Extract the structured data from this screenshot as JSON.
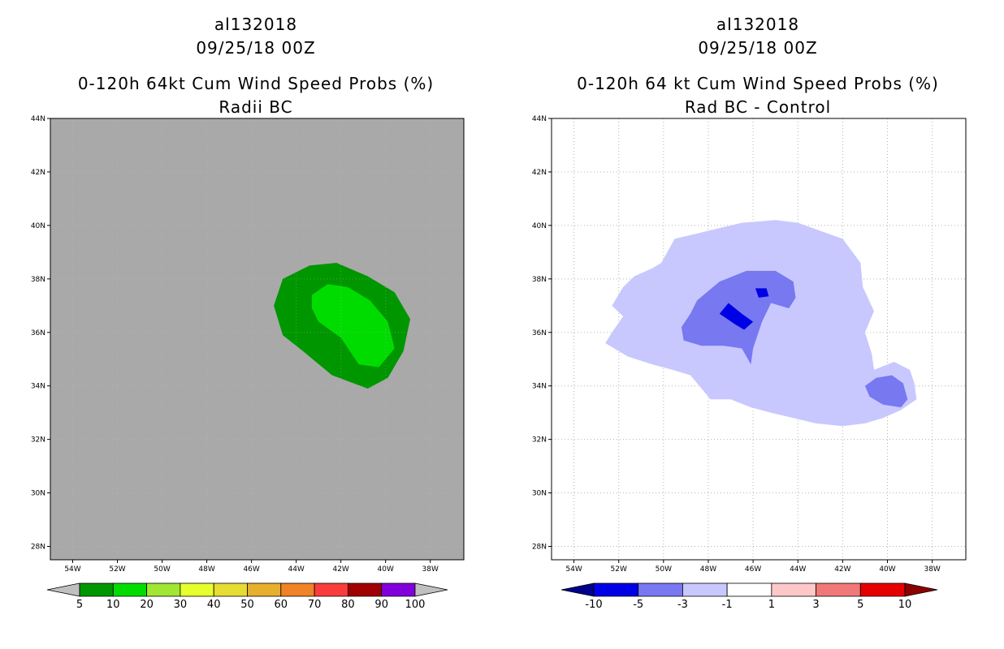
{
  "chart_data": [
    {
      "type": "contour-map",
      "storm_id": "al132018",
      "datetime": "09/25/18 00Z",
      "title": "0-120h 64kt Cum Wind Speed Probs (%)",
      "subtitle": "Radii BC",
      "lat_ticks": [
        "44N",
        "42N",
        "40N",
        "38N",
        "36N",
        "34N",
        "32N",
        "30N",
        "28N"
      ],
      "lon_ticks": [
        "54W",
        "52W",
        "50W",
        "48W",
        "46W",
        "44W",
        "42W",
        "40W",
        "38W"
      ],
      "lon_range": [
        55,
        36.5
      ],
      "lat_range": [
        27.5,
        44
      ],
      "grid": false,
      "background": "#a9a9a9",
      "contours": [
        {
          "level": "5-10",
          "color": "#009600",
          "points": [
            [
              45.0,
              37.0
            ],
            [
              44.6,
              38.0
            ],
            [
              43.4,
              38.5
            ],
            [
              42.2,
              38.6
            ],
            [
              40.8,
              38.1
            ],
            [
              39.6,
              37.5
            ],
            [
              38.9,
              36.5
            ],
            [
              39.2,
              35.3
            ],
            [
              39.9,
              34.3
            ],
            [
              40.8,
              33.9
            ],
            [
              42.4,
              34.4
            ],
            [
              43.7,
              35.3
            ],
            [
              44.6,
              35.9
            ]
          ]
        },
        {
          "level": "10-20",
          "color": "#00dc00",
          "points": [
            [
              43.3,
              37.4
            ],
            [
              42.6,
              37.8
            ],
            [
              41.7,
              37.7
            ],
            [
              40.7,
              37.2
            ],
            [
              39.9,
              36.4
            ],
            [
              39.6,
              35.4
            ],
            [
              40.3,
              34.7
            ],
            [
              41.2,
              34.8
            ],
            [
              42.0,
              35.8
            ],
            [
              43.0,
              36.4
            ],
            [
              43.3,
              36.9
            ]
          ]
        }
      ],
      "colorbar": {
        "labels": [
          "5",
          "10",
          "20",
          "30",
          "40",
          "50",
          "60",
          "70",
          "80",
          "90",
          "100"
        ],
        "colors": [
          "#009600",
          "#00dc00",
          "#a0e632",
          "#e6ff2d",
          "#e6dc32",
          "#e6af2d",
          "#f08228",
          "#fa3c3c",
          "#a00000",
          "#8200dc"
        ],
        "left_arrow_color": "#c0c0c0",
        "right_arrow_color": "#c0c0c0"
      }
    },
    {
      "type": "contour-map",
      "storm_id": "al132018",
      "datetime": "09/25/18 00Z",
      "title": "0-120h 64 kt Cum Wind Speed Probs (%)",
      "subtitle": "Rad BC - Control",
      "lat_ticks": [
        "44N",
        "42N",
        "40N",
        "38N",
        "36N",
        "34N",
        "32N",
        "30N",
        "28N"
      ],
      "lon_ticks": [
        "54W",
        "52W",
        "50W",
        "48W",
        "46W",
        "44W",
        "42W",
        "40W",
        "38W"
      ],
      "lon_range": [
        55,
        36.5
      ],
      "lat_range": [
        27.5,
        44
      ],
      "grid": true,
      "background": "#ffffff",
      "contours": [
        {
          "level": "-3 to -1",
          "color": "#c8c8ff",
          "points": [
            [
              49.5,
              39.5
            ],
            [
              48.0,
              39.8
            ],
            [
              46.5,
              40.1
            ],
            [
              45.0,
              40.2
            ],
            [
              44.0,
              40.1
            ],
            [
              43.0,
              39.8
            ],
            [
              42.0,
              39.5
            ],
            [
              41.2,
              38.6
            ],
            [
              41.1,
              37.7
            ],
            [
              40.6,
              36.8
            ],
            [
              41.0,
              36.0
            ],
            [
              40.7,
              35.2
            ],
            [
              40.6,
              34.6
            ],
            [
              39.7,
              34.9
            ],
            [
              39.0,
              34.6
            ],
            [
              38.8,
              34.1
            ],
            [
              38.7,
              33.5
            ],
            [
              39.4,
              33.1
            ],
            [
              40.2,
              32.8
            ],
            [
              41.0,
              32.6
            ],
            [
              42.0,
              32.5
            ],
            [
              43.2,
              32.6
            ],
            [
              44.2,
              32.8
            ],
            [
              45.2,
              33.0
            ],
            [
              46.1,
              33.2
            ],
            [
              47.0,
              33.5
            ],
            [
              47.9,
              33.5
            ],
            [
              48.3,
              33.9
            ],
            [
              48.8,
              34.4
            ],
            [
              49.6,
              34.6
            ],
            [
              50.5,
              34.8
            ],
            [
              51.6,
              35.1
            ],
            [
              52.6,
              35.6
            ],
            [
              52.3,
              36.0
            ],
            [
              51.8,
              36.6
            ],
            [
              52.3,
              37.0
            ],
            [
              51.8,
              37.7
            ],
            [
              51.3,
              38.1
            ],
            [
              50.5,
              38.4
            ],
            [
              50.1,
              38.6
            ]
          ]
        },
        {
          "level": "-5 to -3",
          "color": "#7878f0",
          "points": [
            [
              48.5,
              37.2
            ],
            [
              47.5,
              37.9
            ],
            [
              46.3,
              38.3
            ],
            [
              45.0,
              38.3
            ],
            [
              44.2,
              37.9
            ],
            [
              44.1,
              37.3
            ],
            [
              44.4,
              36.9
            ],
            [
              45.2,
              37.1
            ],
            [
              45.6,
              36.4
            ],
            [
              46.0,
              35.4
            ],
            [
              46.1,
              34.8
            ],
            [
              46.5,
              35.4
            ],
            [
              47.3,
              35.5
            ],
            [
              48.3,
              35.5
            ],
            [
              49.1,
              35.7
            ],
            [
              49.2,
              36.2
            ],
            [
              48.8,
              36.7
            ]
          ]
        },
        {
          "level": "-5 to -3",
          "color": "#7878f0",
          "points": [
            [
              41.0,
              34.0
            ],
            [
              40.8,
              33.6
            ],
            [
              40.2,
              33.3
            ],
            [
              39.4,
              33.2
            ],
            [
              39.1,
              33.5
            ],
            [
              39.3,
              34.1
            ],
            [
              39.8,
              34.4
            ],
            [
              40.5,
              34.3
            ]
          ]
        },
        {
          "level": "-10 to -5",
          "color": "#0000e6",
          "points": [
            [
              47.1,
              37.1
            ],
            [
              46.5,
              36.7
            ],
            [
              46.0,
              36.4
            ],
            [
              46.4,
              36.1
            ],
            [
              46.8,
              36.3
            ],
            [
              47.5,
              36.7
            ]
          ]
        },
        {
          "level": "-10 to -5",
          "color": "#0000e6",
          "points": [
            [
              45.9,
              37.65
            ],
            [
              45.4,
              37.65
            ],
            [
              45.3,
              37.35
            ],
            [
              45.75,
              37.3
            ]
          ]
        }
      ],
      "colorbar": {
        "labels": [
          "-10",
          "-5",
          "-3",
          "-1",
          "1",
          "3",
          "5",
          "10"
        ],
        "colors": [
          "#0000e6",
          "#7878f0",
          "#c8c8ff",
          "#ffffff",
          "#ffc8c8",
          "#f07878",
          "#e60000"
        ],
        "left_arrow_color": "#00008c",
        "right_arrow_color": "#8c0000"
      }
    }
  ]
}
